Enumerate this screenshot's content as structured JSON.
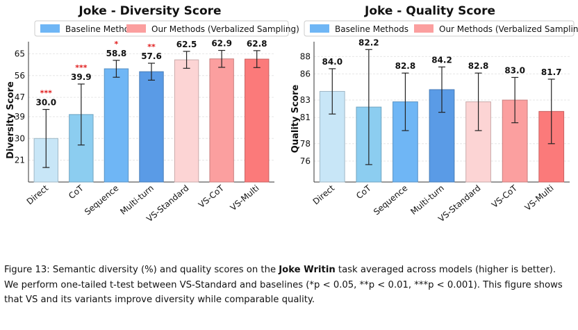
{
  "colors": {
    "Direct": "#c8e6f7",
    "CoT": "#8ccdf0",
    "Sequence": "#6fb6f5",
    "Multi-turn": "#5a9be6",
    "VS-Standard": "#fcd4d4",
    "VS-CoT": "#fb9f9f",
    "VS-Multi": "#fb7a7a",
    "legend_baseline": "#6fb6f5",
    "legend_ours": "#fb9f9f",
    "star": "#e01a1a"
  },
  "legend": {
    "baseline": "Baseline Methods",
    "ours": "Our Methods (Verbalized Sampling)"
  },
  "chart_data": [
    {
      "type": "bar",
      "title": "Joke - Diversity Score",
      "xlabel": "",
      "ylabel": "Diversity Score",
      "categories": [
        "Direct",
        "CoT",
        "Sequence",
        "Multi-turn",
        "VS-Standard",
        "VS-CoT",
        "VS-Multi"
      ],
      "values": [
        30.0,
        39.9,
        58.8,
        57.6,
        62.5,
        62.9,
        62.8
      ],
      "value_labels": [
        "30.0",
        "39.9",
        "58.8",
        "57.6",
        "62.5",
        "62.9",
        "62.8"
      ],
      "error": [
        12.0,
        12.6,
        3.5,
        3.5,
        3.5,
        3.5,
        3.5
      ],
      "significance": [
        "***",
        "***",
        "*",
        "**",
        "",
        "",
        ""
      ],
      "ylim": [
        12.0,
        70.0
      ],
      "yticks": [
        21,
        30,
        39,
        47,
        56,
        65
      ],
      "grid": true,
      "legend_position": "top"
    },
    {
      "type": "bar",
      "title": "Joke - Quality Score",
      "xlabel": "",
      "ylabel": "Quality Score",
      "categories": [
        "Direct",
        "CoT",
        "Sequence",
        "Multi-turn",
        "VS-Standard",
        "VS-CoT",
        "VS-Multi"
      ],
      "values": [
        84.0,
        82.2,
        82.8,
        84.2,
        82.8,
        83.0,
        81.7
      ],
      "value_labels": [
        "84.0",
        "82.2",
        "82.8",
        "84.2",
        "82.8",
        "83.0",
        "81.7"
      ],
      "error": [
        2.6,
        6.6,
        3.3,
        2.6,
        3.3,
        2.6,
        3.7
      ],
      "significance": [
        "",
        "",
        "",
        "",
        "",
        "",
        ""
      ],
      "ylim": [
        73.6,
        89.7
      ],
      "yticks": [
        76,
        78,
        81,
        83,
        86,
        88
      ],
      "grid": true,
      "legend_position": "top"
    }
  ],
  "caption": {
    "prefix": "Figure 13:  Semantic diversity (%) and quality scores on the ",
    "bold": "Joke Writin",
    "line1_rest": " task averaged across models (higher is better).",
    "line2": "We perform one-tailed t-test between VS-Standard and baselines (*p < 0.05, **p < 0.01, ***p < 0.001). This figure shows",
    "line3": "that VS and its variants improve diversity while comparable quality."
  }
}
